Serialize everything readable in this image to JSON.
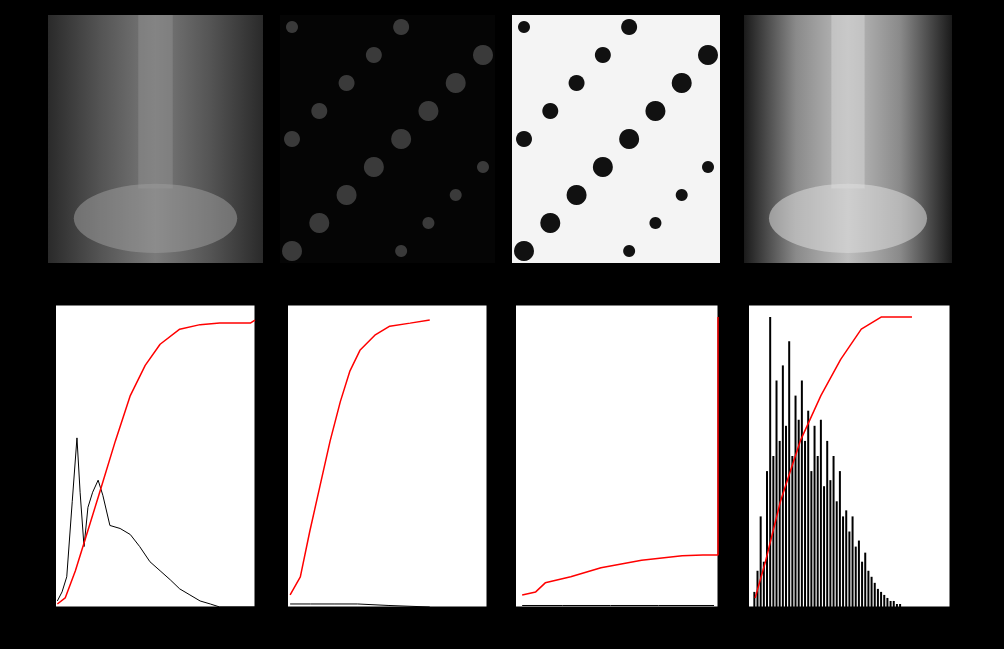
{
  "chart_data": [
    {
      "type": "line",
      "xlim": [
        0,
        255
      ],
      "ylim": [
        0,
        1
      ],
      "tick_labels": false,
      "series": [
        {
          "type": "line",
          "color": "#000000",
          "x": [
            3,
            9,
            15,
            22,
            28,
            32,
            37,
            42,
            48,
            55,
            61,
            70,
            83,
            96,
            108,
            121,
            134,
            147,
            159,
            172,
            185,
            198,
            210,
            255
          ],
          "values": [
            0.02,
            0.05,
            0.1,
            0.35,
            0.56,
            0.38,
            0.2,
            0.33,
            0.38,
            0.42,
            0.37,
            0.27,
            0.26,
            0.24,
            0.2,
            0.15,
            0.12,
            0.09,
            0.06,
            0.04,
            0.02,
            0.01,
            0,
            0
          ]
        },
        {
          "type": "line",
          "color": "#ff0000",
          "x": [
            3,
            13,
            26,
            38,
            57,
            77,
            96,
            115,
            134,
            159,
            185,
            210,
            249,
            255
          ],
          "values": [
            0.01,
            0.03,
            0.12,
            0.22,
            0.38,
            0.55,
            0.7,
            0.8,
            0.87,
            0.92,
            0.935,
            0.94,
            0.94,
            0.95
          ]
        }
      ]
    },
    {
      "type": "line",
      "xlim": [
        0,
        255
      ],
      "ylim": [
        0,
        1
      ],
      "tick_labels": false,
      "series": [
        {
          "type": "line",
          "color": "#000000",
          "x": [
            4,
            30,
            60,
            90,
            130,
            182
          ],
          "values": [
            0.01,
            0.01,
            0.01,
            0.01,
            0.005,
            0
          ]
        },
        {
          "type": "line",
          "color": "#ff0000",
          "x": [
            4,
            17,
            29,
            42,
            55,
            68,
            80,
            93,
            112,
            131,
            157,
            182
          ],
          "values": [
            0.04,
            0.1,
            0.25,
            0.4,
            0.55,
            0.68,
            0.78,
            0.85,
            0.9,
            0.93,
            0.94,
            0.95
          ]
        }
      ]
    },
    {
      "type": "line",
      "xlim": [
        0,
        255
      ],
      "ylim": [
        0,
        1
      ],
      "tick_labels": false,
      "series": [
        {
          "type": "line",
          "color": "#000000",
          "x": [
            9,
            60,
            120,
            180,
            250
          ],
          "values": [
            0.005,
            0.005,
            0.005,
            0.005,
            0.005
          ]
        },
        {
          "type": "line",
          "color": "#ff0000",
          "x": [
            9,
            26,
            38,
            70,
            108,
            159,
            210,
            236,
            255,
            255
          ],
          "values": [
            0.04,
            0.05,
            0.08,
            0.1,
            0.13,
            0.155,
            0.17,
            0.172,
            0.172,
            0.96
          ]
        }
      ]
    },
    {
      "type": "line",
      "xlim": [
        0,
        255
      ],
      "ylim": [
        0,
        1
      ],
      "tick_labels": false,
      "series": [
        {
          "type": "bar",
          "color": "#000000",
          "x": [
            8,
            12,
            16,
            20,
            24,
            28,
            32,
            36,
            40,
            44,
            48,
            52,
            56,
            60,
            64,
            68,
            72,
            76,
            80,
            84,
            88,
            92,
            96,
            100,
            104,
            108,
            112,
            116,
            120,
            124,
            128,
            132,
            136,
            140,
            144,
            148,
            152,
            156,
            160,
            164,
            168,
            172,
            176,
            180,
            184,
            188,
            192,
            196
          ],
          "values": [
            0.05,
            0.12,
            0.3,
            0.15,
            0.45,
            0.96,
            0.5,
            0.75,
            0.55,
            0.8,
            0.6,
            0.88,
            0.5,
            0.7,
            0.62,
            0.75,
            0.55,
            0.65,
            0.45,
            0.6,
            0.5,
            0.62,
            0.4,
            0.55,
            0.42,
            0.5,
            0.35,
            0.45,
            0.3,
            0.32,
            0.25,
            0.3,
            0.2,
            0.22,
            0.15,
            0.18,
            0.12,
            0.1,
            0.08,
            0.06,
            0.05,
            0.04,
            0.03,
            0.02,
            0.02,
            0.01,
            0.01,
            0
          ]
        },
        {
          "type": "line",
          "color": "#ff0000",
          "x": [
            9,
            22,
            41,
            66,
            92,
            117,
            143,
            168,
            207
          ],
          "values": [
            0.03,
            0.15,
            0.35,
            0.55,
            0.7,
            0.82,
            0.92,
            0.96,
            0.96
          ]
        }
      ]
    }
  ]
}
